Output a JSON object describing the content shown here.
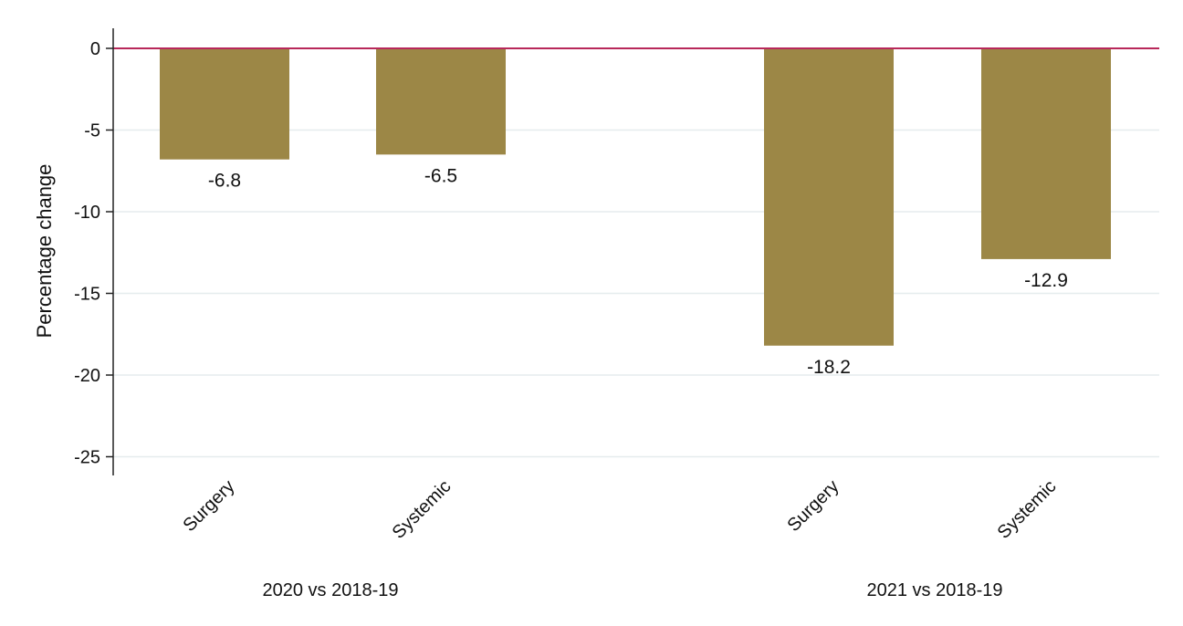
{
  "chart_data": {
    "type": "bar",
    "title": "",
    "xlabel": "",
    "ylabel": "Percentage change",
    "ylim": [
      -26.5,
      1.2
    ],
    "yticks": [
      0,
      -5,
      -10,
      -15,
      -20,
      -25
    ],
    "grid": true,
    "legend": "none",
    "bar_color": "#9c8746",
    "reference_line": {
      "value": 0,
      "color": "#b8285a"
    },
    "groups": [
      {
        "label": "2020 vs 2018-19",
        "bars": [
          {
            "category": "Surgery",
            "value": -6.8,
            "label": "-6.8"
          },
          {
            "category": "Systemic",
            "value": -6.5,
            "label": "-6.5"
          }
        ]
      },
      {
        "label": "2021 vs 2018-19",
        "bars": [
          {
            "category": "Surgery",
            "value": -18.2,
            "label": "-18.2"
          },
          {
            "category": "Systemic",
            "value": -12.9,
            "label": "-12.9"
          }
        ]
      }
    ]
  }
}
